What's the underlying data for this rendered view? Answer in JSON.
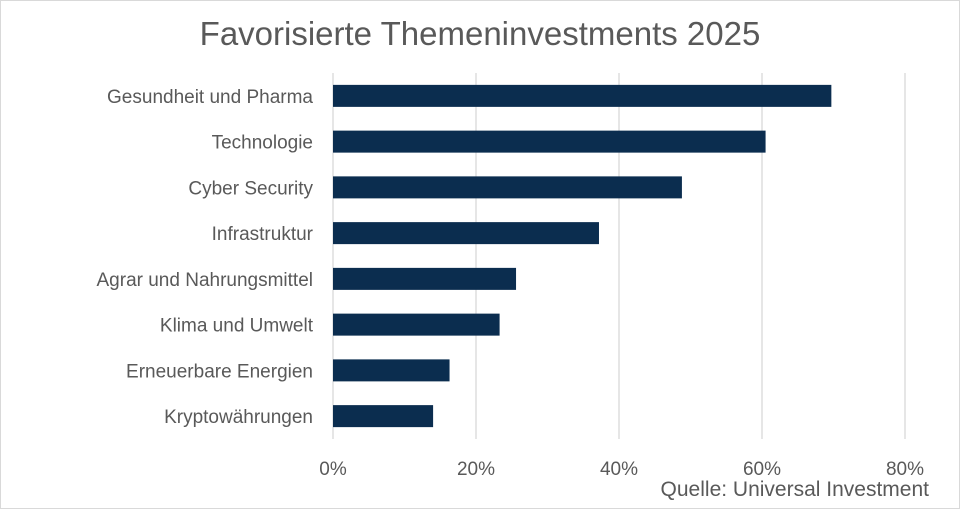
{
  "chart_data": {
    "type": "bar",
    "orientation": "horizontal",
    "title": "Favorisierte Themeninvestments 2025",
    "categories": [
      "Gesundheit und Pharma",
      "Technologie",
      "Cyber Security",
      "Infrastruktur",
      "Agrar und Nahrungsmittel",
      "Klima und Umwelt",
      "Erneuerbare Energien",
      "Kryptowährungen"
    ],
    "values": [
      69.7,
      60.5,
      48.8,
      37.2,
      25.6,
      23.3,
      16.3,
      14.0
    ],
    "xlim": [
      0,
      80
    ],
    "xticks": [
      0,
      20,
      40,
      60,
      80
    ],
    "xtick_labels": [
      "0%",
      "20%",
      "40%",
      "60%",
      "80%"
    ],
    "grid": "vertical",
    "bar_color": "#0b2d4f",
    "grid_color": "#d9d9d9",
    "source": "Quelle: Universal Investment"
  }
}
